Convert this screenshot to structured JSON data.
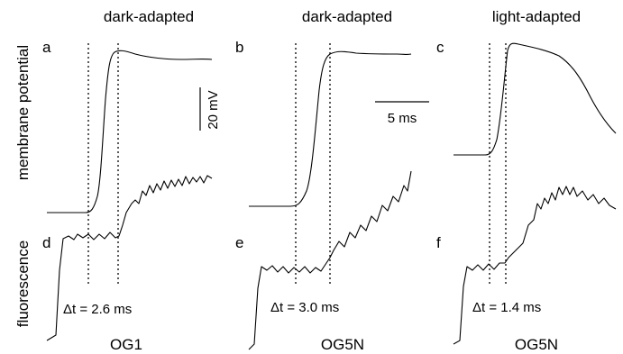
{
  "y_labels": {
    "top": "membrane potential",
    "bottom": "fluorescence"
  },
  "scale": {
    "voltage": "20 mV",
    "time": "5 ms"
  },
  "panels": [
    {
      "condition": "dark-adapted",
      "top_letter": "a",
      "bottom_letter": "d",
      "delta_t": "Δt = 2.6 ms",
      "dye": "OG1"
    },
    {
      "condition": "dark-adapted",
      "top_letter": "b",
      "bottom_letter": "e",
      "delta_t": "Δt = 3.0 ms",
      "dye": "OG5N"
    },
    {
      "condition": "light-adapted",
      "top_letter": "c",
      "bottom_letter": "f",
      "delta_t": "Δt = 1.4 ms",
      "dye": "OG5N"
    }
  ]
}
